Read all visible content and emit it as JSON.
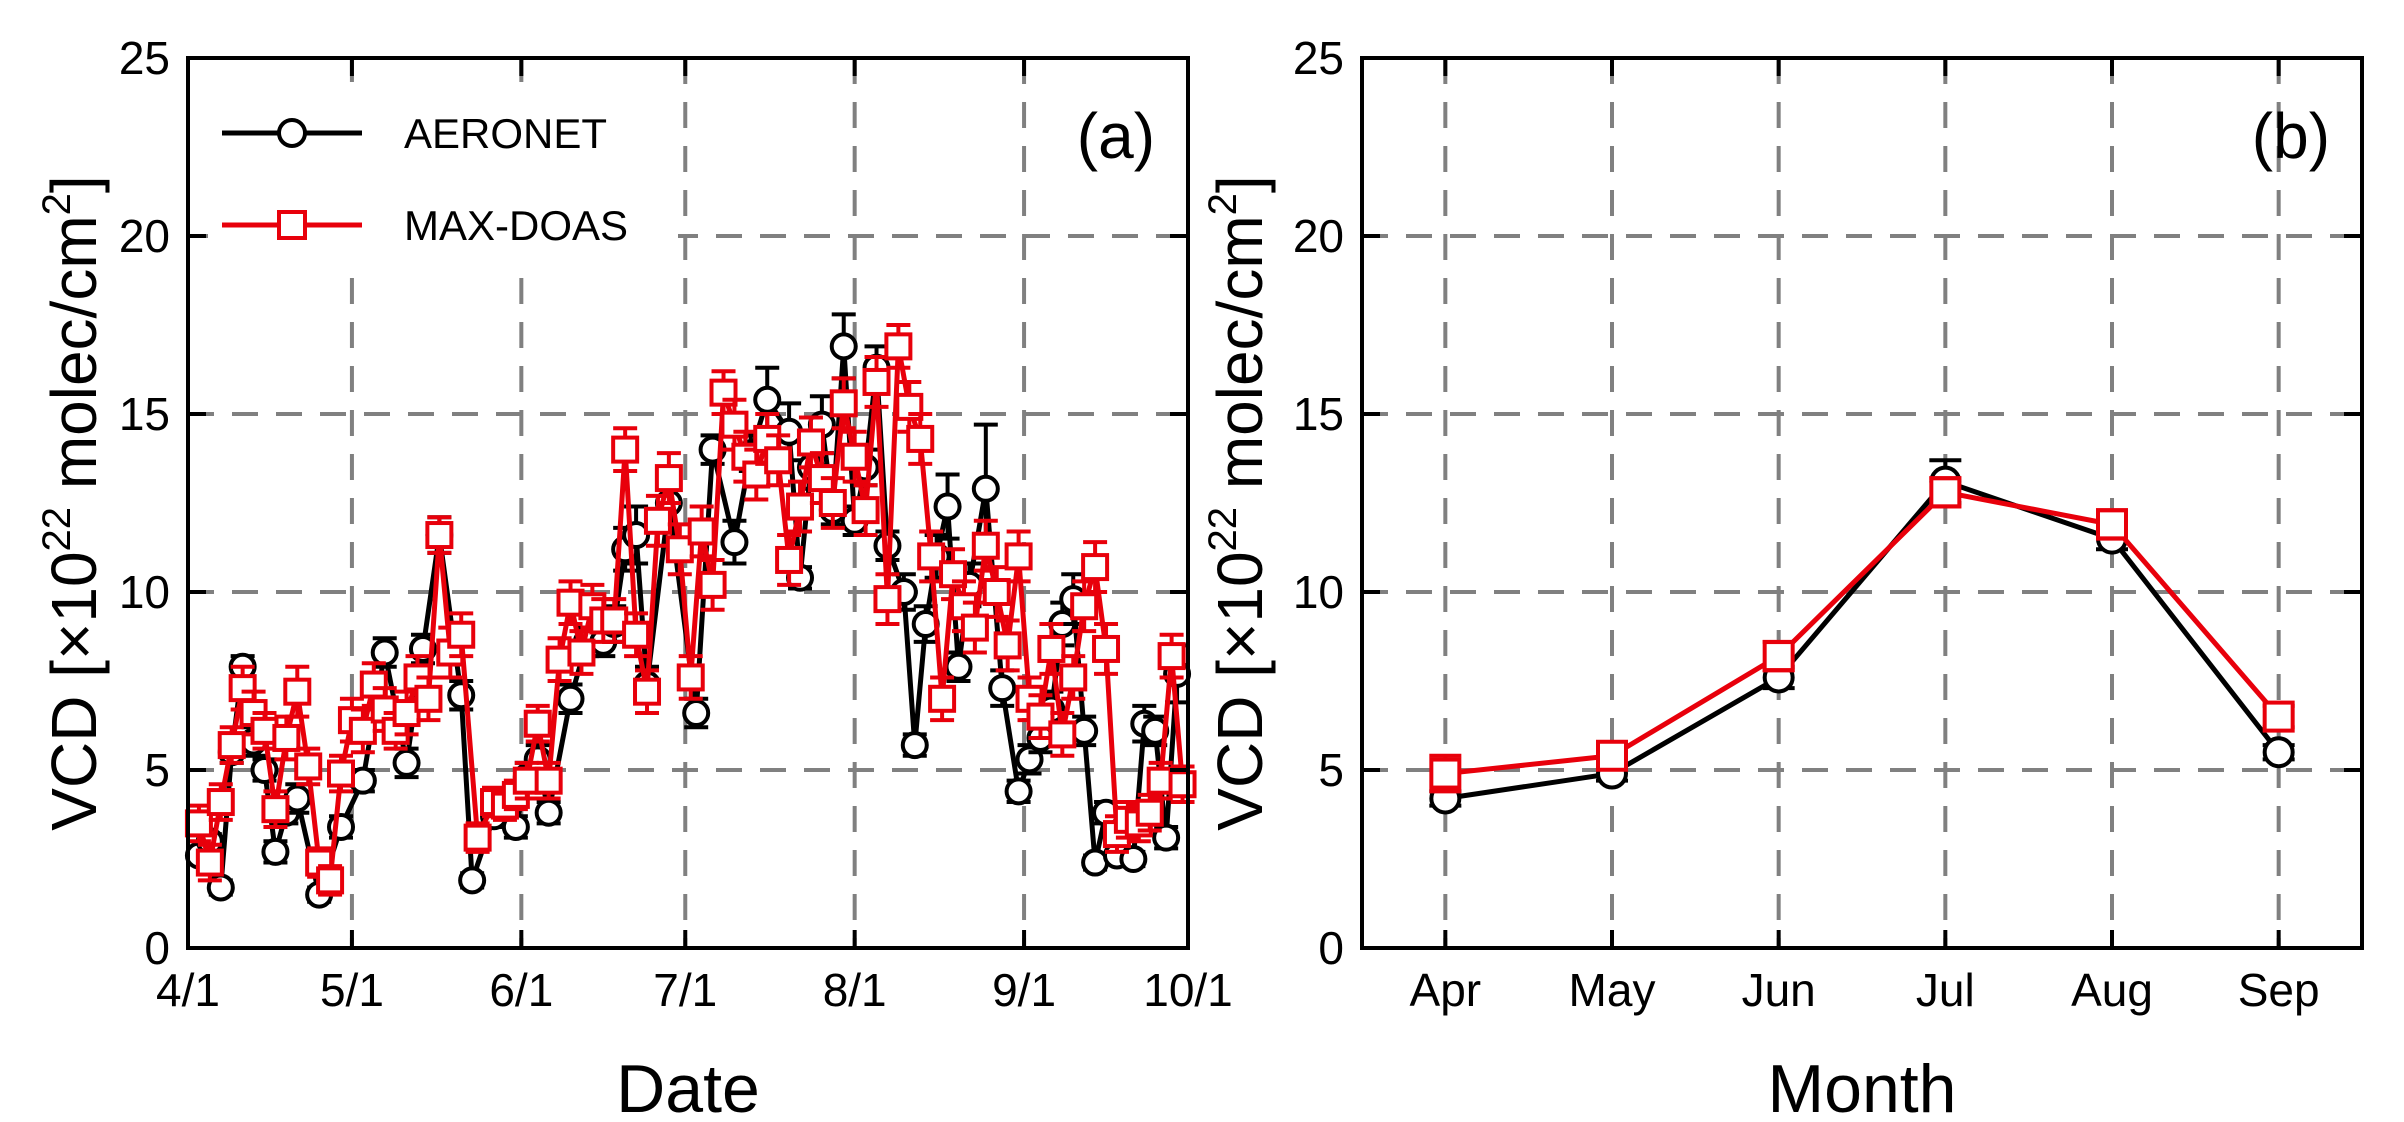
{
  "chart_data": [
    {
      "type": "line",
      "panel_label": "(a)",
      "xlabel": "Date",
      "ylabel_parts": {
        "prefix": "VCD [",
        "times": "×",
        "base": "10",
        "exp": "22",
        "unit": " molec/cm",
        "unit_exp": "2",
        "suffix": "]"
      },
      "ylim": [
        0,
        25
      ],
      "yticks": [
        "0",
        "5",
        "10",
        "15",
        "20",
        "25"
      ],
      "xlim_days": [
        0,
        183
      ],
      "xticks": [
        {
          "label": "4/1",
          "day": 0
        },
        {
          "label": "5/1",
          "day": 30
        },
        {
          "label": "6/1",
          "day": 61
        },
        {
          "label": "7/1",
          "day": 91
        },
        {
          "label": "8/1",
          "day": 122
        },
        {
          "label": "9/1",
          "day": 153
        },
        {
          "label": "10/1",
          "day": 183
        }
      ],
      "grid": true,
      "legend_position": "top-left",
      "series": [
        {
          "name": "AERONET",
          "color": "#000000",
          "marker": "circle",
          "x_days": [
            2,
            4,
            6,
            8,
            10,
            12,
            14,
            16,
            18,
            20,
            24,
            28,
            32,
            36,
            40,
            43,
            46,
            50,
            52,
            56,
            60,
            62,
            64,
            66,
            70,
            73,
            76,
            78,
            80,
            82,
            84,
            88,
            93,
            96,
            100,
            103,
            106,
            110,
            112,
            114,
            116,
            118,
            120,
            122,
            124,
            126,
            128,
            131,
            133,
            135,
            137,
            139,
            141,
            143,
            146,
            149,
            152,
            154,
            156,
            158,
            160,
            162,
            164,
            166,
            168,
            170,
            173,
            175,
            177,
            179,
            181
          ],
          "values": [
            2.6,
            3.0,
            1.7,
            5.5,
            7.9,
            5.8,
            5.0,
            2.7,
            3.8,
            4.2,
            1.5,
            3.4,
            4.7,
            8.3,
            5.2,
            8.4,
            11.6,
            7.1,
            1.9,
            3.7,
            3.4,
            4.8,
            5.3,
            3.8,
            7.0,
            8.6,
            8.6,
            9.1,
            11.2,
            11.6,
            7.4,
            12.5,
            6.6,
            14.0,
            11.4,
            13.9,
            15.4,
            14.5,
            10.4,
            13.5,
            14.7,
            12.3,
            16.9,
            12.0,
            13.5,
            16.3,
            11.3,
            10.0,
            5.7,
            9.1,
            11.0,
            12.4,
            7.9,
            10.2,
            12.9,
            7.3,
            4.4,
            5.3,
            5.9,
            6.7,
            9.1,
            9.8,
            6.1,
            2.4,
            3.8,
            2.6,
            2.5,
            6.3,
            6.1,
            3.1,
            7.7
          ],
          "errors": [
            0.2,
            0.2,
            0.2,
            0.3,
            0.3,
            0.4,
            0.3,
            0.3,
            0.3,
            0.4,
            0.2,
            0.3,
            0.3,
            0.4,
            0.4,
            0.4,
            0.5,
            0.4,
            0.2,
            0.3,
            0.3,
            0.4,
            0.4,
            0.3,
            0.4,
            0.4,
            0.4,
            0.5,
            0.6,
            0.8,
            0.5,
            0.7,
            0.4,
            0.4,
            0.6,
            0.5,
            0.9,
            0.8,
            0.3,
            0.6,
            0.8,
            0.4,
            0.9,
            0.4,
            0.5,
            0.6,
            0.4,
            0.5,
            0.3,
            0.5,
            0.6,
            0.9,
            0.4,
            0.6,
            1.8,
            0.5,
            0.3,
            0.4,
            0.4,
            0.5,
            0.6,
            0.7,
            0.4,
            0.2,
            0.3,
            0.2,
            0.2,
            0.5,
            0.4,
            0.3,
            0.8
          ]
        },
        {
          "name": "MAX-DOAS",
          "color": "#e8000b",
          "marker": "square",
          "x_days": [
            2,
            4,
            6,
            8,
            10,
            12,
            14,
            16,
            18,
            20,
            22,
            24,
            26,
            28,
            30,
            32,
            34,
            36,
            38,
            40,
            42,
            44,
            46,
            48,
            50,
            53,
            56,
            58,
            60,
            62,
            64,
            66,
            68,
            70,
            72,
            74,
            76,
            78,
            80,
            82,
            84,
            86,
            88,
            90,
            92,
            94,
            96,
            98,
            100,
            102,
            104,
            106,
            108,
            110,
            112,
            114,
            116,
            118,
            120,
            122,
            124,
            126,
            128,
            130,
            132,
            134,
            136,
            138,
            140,
            142,
            144,
            146,
            148,
            150,
            152,
            154,
            156,
            158,
            160,
            162,
            164,
            166,
            168,
            170,
            172,
            174,
            176,
            178,
            180,
            182
          ],
          "values": [
            3.5,
            2.4,
            4.1,
            5.7,
            7.3,
            6.6,
            6.1,
            3.9,
            5.9,
            7.2,
            5.1,
            2.4,
            1.9,
            4.9,
            6.4,
            6.1,
            7.4,
            6.7,
            6.1,
            6.6,
            7.6,
            7.0,
            11.6,
            8.3,
            8.8,
            3.1,
            4.1,
            4.0,
            4.3,
            4.7,
            6.3,
            4.7,
            8.1,
            9.7,
            8.3,
            9.6,
            9.2,
            9.2,
            14.0,
            8.8,
            7.2,
            12.0,
            13.2,
            11.2,
            7.6,
            11.7,
            10.2,
            15.6,
            14.7,
            13.8,
            13.3,
            14.3,
            13.7,
            10.9,
            12.4,
            14.2,
            13.2,
            12.5,
            15.3,
            13.8,
            12.3,
            15.9,
            9.8,
            16.9,
            15.2,
            14.3,
            11.0,
            7.0,
            10.5,
            9.6,
            9.0,
            11.3,
            10.0,
            8.5,
            11.0,
            7.0,
            6.5,
            8.4,
            6.0,
            7.6,
            9.6,
            10.7,
            8.4,
            3.2,
            3.6,
            3.5,
            3.8,
            4.7,
            8.2,
            4.6
          ],
          "errors": [
            0.5,
            0.5,
            0.5,
            0.5,
            0.6,
            0.6,
            0.5,
            0.5,
            0.6,
            0.7,
            0.5,
            0.4,
            0.4,
            0.5,
            0.6,
            0.6,
            0.6,
            0.6,
            0.5,
            0.6,
            0.6,
            0.6,
            0.5,
            0.7,
            0.6,
            0.4,
            0.4,
            0.4,
            0.4,
            0.5,
            0.5,
            0.5,
            0.6,
            0.6,
            0.6,
            0.6,
            0.6,
            0.6,
            0.6,
            0.6,
            0.6,
            0.7,
            0.7,
            0.7,
            0.6,
            0.7,
            0.7,
            0.6,
            0.7,
            0.7,
            0.7,
            0.7,
            0.7,
            0.7,
            0.7,
            0.7,
            0.7,
            0.7,
            0.7,
            0.7,
            0.7,
            0.7,
            0.7,
            0.6,
            0.7,
            0.7,
            0.7,
            0.6,
            0.7,
            0.7,
            0.7,
            0.7,
            0.7,
            0.7,
            0.7,
            0.6,
            0.6,
            0.7,
            0.6,
            0.6,
            0.7,
            0.7,
            0.7,
            0.5,
            0.5,
            0.5,
            0.5,
            0.5,
            0.6,
            0.5
          ]
        }
      ]
    },
    {
      "type": "line",
      "panel_label": "(b)",
      "xlabel": "Month",
      "ylabel_parts": {
        "prefix": "VCD [",
        "times": "×",
        "base": "10",
        "exp": "22",
        "unit": " molec/cm",
        "unit_exp": "2",
        "suffix": "]"
      },
      "ylim": [
        0,
        25
      ],
      "yticks": [
        "0",
        "5",
        "10",
        "15",
        "20",
        "25"
      ],
      "categories": [
        "Apr",
        "May",
        "Jun",
        "Jul",
        "Aug",
        "Sep"
      ],
      "grid": true,
      "series": [
        {
          "name": "AERONET",
          "color": "#000000",
          "marker": "circle",
          "values": [
            4.2,
            4.9,
            7.6,
            13.1,
            11.5,
            5.5
          ],
          "errors": [
            0.2,
            0.2,
            0.3,
            0.6,
            0.3,
            0.2
          ]
        },
        {
          "name": "MAX-DOAS",
          "color": "#e8000b",
          "marker": "square",
          "values": [
            4.9,
            5.4,
            8.2,
            12.8,
            11.9,
            6.5
          ],
          "errors": [
            0.5,
            0.3,
            0.4,
            0.4,
            0.4,
            0.3
          ]
        }
      ]
    }
  ]
}
